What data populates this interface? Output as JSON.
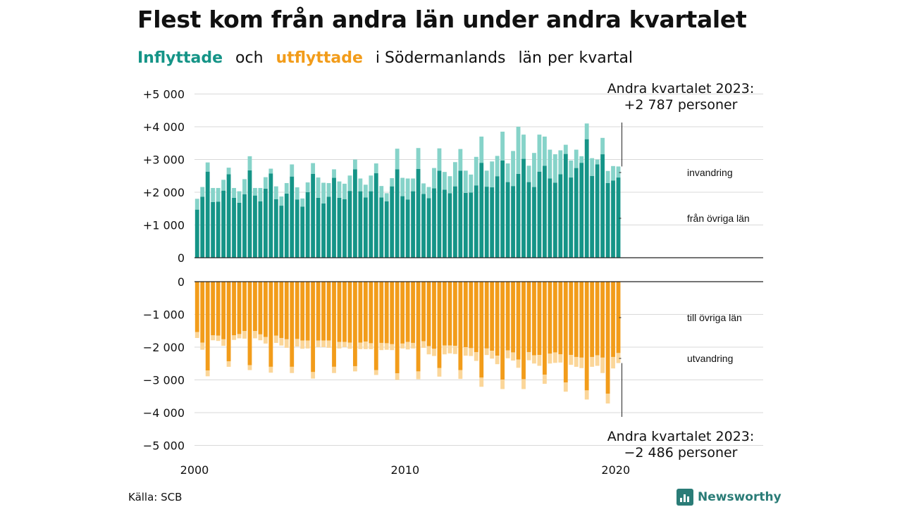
{
  "title": "Flest kom från andra län under andra kvartalet",
  "subtitle": {
    "part1": "Inflyttade",
    "part2": "och",
    "part3": "utflyttade",
    "part4": "i Södermanlands",
    "part5": "län",
    "part6": "per",
    "part7": "kvartal"
  },
  "source": "Källa: SCB",
  "brand": {
    "name": "Newsworthy",
    "icon": "newsworthy-chart-icon"
  },
  "colors": {
    "in_dark": "#159487",
    "in_light": "#86d3c9",
    "out_dark": "#f29c1a",
    "out_light": "#fbd699",
    "grid": "#d9d9d9",
    "axis": "#222222"
  },
  "chart_data": {
    "type": "bar",
    "first_year": 2000,
    "quarters_per_year": 4,
    "xticks": [
      "2000",
      "2010",
      "2020"
    ],
    "xlim": [
      "2000",
      "2027"
    ],
    "top_yticks": [
      "0",
      "+1 000",
      "+2 000",
      "+3 000",
      "+4 000",
      "+5 000"
    ],
    "bottom_yticks": [
      "0",
      "−1 000",
      "−2 000",
      "−3 000",
      "−4 000",
      "−5 000"
    ],
    "ylim_top": [
      0,
      5000
    ],
    "ylim_bottom": [
      -5000,
      0
    ],
    "labels": {
      "invandring": "invandring",
      "fran_ovriga_lan": "från övriga län",
      "till_ovriga_lan": "till övriga län",
      "utvandring": "utvandring"
    },
    "callout_top": {
      "line1": "Andra kvartalet 2023:",
      "line2": "+2 787 personer"
    },
    "callout_bottom": {
      "line1": "Andra kvartalet 2023:",
      "line2": "−2 486 personer"
    },
    "series": [
      {
        "name": "från övriga län",
        "values": [
          1470,
          1860,
          2630,
          1700,
          1710,
          2050,
          2550,
          1830,
          1680,
          1940,
          2670,
          1900,
          1720,
          2110,
          2570,
          1790,
          1590,
          1960,
          2480,
          1780,
          1560,
          2000,
          2560,
          1830,
          1660,
          1860,
          2440,
          1830,
          1790,
          2040,
          2700,
          2030,
          1840,
          2030,
          2580,
          1840,
          1720,
          2180,
          2700,
          1880,
          1780,
          2030,
          2710,
          1950,
          1820,
          2120,
          2660,
          2080,
          1970,
          2180,
          2660,
          1980,
          1990,
          2210,
          2900,
          2170,
          2150,
          2490,
          2970,
          2310,
          2190,
          2560,
          3020,
          2310,
          2160,
          2630,
          2810,
          2420,
          2290,
          2550,
          3170,
          2450,
          2740,
          2900,
          3620,
          2500,
          2850,
          3160,
          2280,
          2360,
          2450
        ]
      },
      {
        "name": "invandring",
        "values": [
          330,
          300,
          280,
          430,
          420,
          330,
          200,
          300,
          350,
          460,
          430,
          230,
          410,
          350,
          150,
          390,
          280,
          320,
          370,
          370,
          250,
          300,
          330,
          620,
          630,
          420,
          260,
          500,
          470,
          470,
          300,
          390,
          390,
          480,
          300,
          350,
          250,
          250,
          630,
          560,
          640,
          390,
          640,
          320,
          340,
          620,
          680,
          540,
          520,
          740,
          660,
          680,
          550,
          870,
          800,
          490,
          790,
          620,
          880,
          570,
          1070,
          1440,
          740,
          500,
          1040,
          1130,
          890,
          880,
          870,
          730,
          280,
          520,
          560,
          200,
          480,
          540,
          150,
          500,
          370,
          440,
          337
        ]
      },
      {
        "name": "till övriga län",
        "values": [
          1540,
          1860,
          2710,
          1640,
          1650,
          1760,
          2430,
          1640,
          1600,
          1510,
          2550,
          1510,
          1610,
          1690,
          2600,
          1650,
          1720,
          1760,
          2600,
          1750,
          1800,
          1800,
          2760,
          1800,
          1800,
          1800,
          2600,
          1840,
          1840,
          1860,
          2580,
          1860,
          1830,
          1880,
          2700,
          1870,
          1880,
          1910,
          2800,
          1890,
          1840,
          1870,
          2740,
          1820,
          1970,
          2050,
          2640,
          1950,
          1950,
          1960,
          2700,
          2000,
          2030,
          2150,
          2930,
          2040,
          2110,
          2260,
          2990,
          2100,
          2160,
          2380,
          2980,
          2150,
          2250,
          2240,
          2840,
          2200,
          2160,
          2220,
          3080,
          2240,
          2300,
          2320,
          3320,
          2300,
          2250,
          2320,
          3420,
          2300,
          2180
        ]
      },
      {
        "name": "utvandring",
        "values": [
          180,
          220,
          180,
          150,
          160,
          200,
          170,
          140,
          130,
          230,
          150,
          220,
          180,
          200,
          180,
          220,
          230,
          260,
          190,
          230,
          250,
          240,
          200,
          200,
          200,
          220,
          190,
          200,
          160,
          190,
          160,
          200,
          230,
          180,
          150,
          220,
          200,
          180,
          200,
          150,
          230,
          170,
          240,
          200,
          250,
          220,
          260,
          270,
          240,
          250,
          270,
          260,
          240,
          270,
          280,
          200,
          240,
          260,
          290,
          240,
          250,
          250,
          300,
          250,
          250,
          330,
          280,
          300,
          320,
          250,
          280,
          300,
          300,
          320,
          280,
          300,
          320,
          470,
          300,
          350,
          306
        ]
      }
    ]
  }
}
